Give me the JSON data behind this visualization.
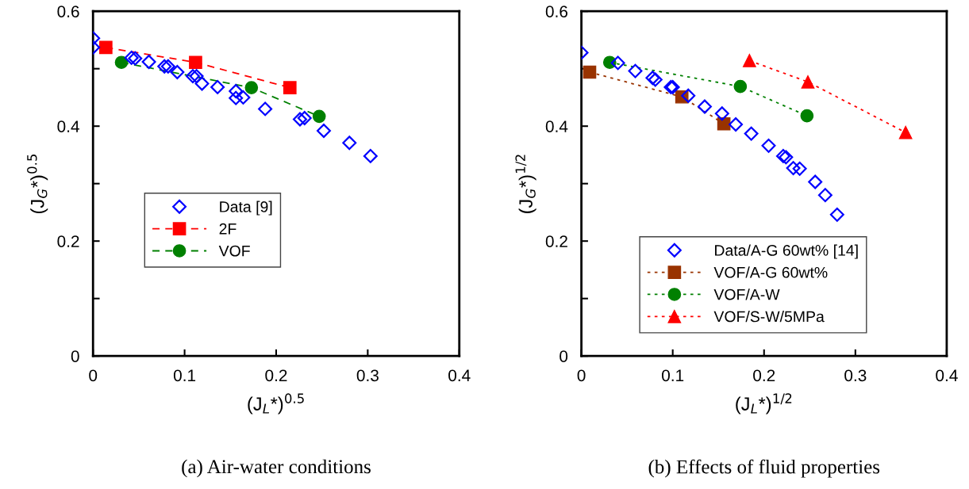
{
  "chart_data": [
    {
      "type": "scatter",
      "xlabel": "(J$_{L}$*)$^{0.5}$",
      "ylabel": "(J$_{G}$*)$^{0.5}$",
      "annotations": [
        "(a) Air-water conditions"
      ],
      "xlim": [
        0,
        0.4
      ],
      "ylim": [
        0,
        0.6
      ],
      "xticks": [
        0,
        0.1,
        0.2,
        0.3,
        0.4
      ],
      "yticks": [
        0,
        {
          "value": 0.1,
          "label": null
        },
        0.2,
        {
          "value": 0.3,
          "label": null
        },
        0.4,
        {
          "value": 0.5,
          "label": null
        },
        0.6
      ],
      "grid": false,
      "legend": "center left",
      "series": [
        {
          "name": "Data [9]",
          "marker": "diamond",
          "color": "#0000ff",
          "x": [
            0,
            0,
            0.042,
            0.046,
            0.061,
            0.078,
            0.082,
            0.092,
            0.109,
            0.113,
            0.119,
            0.136,
            0.156,
            0.156,
            0.164,
            0.188,
            0.226,
            0.231,
            0.252,
            0.28,
            0.303
          ],
          "values": [
            0.553,
            0.537,
            0.519,
            0.518,
            0.512,
            0.504,
            0.504,
            0.494,
            0.487,
            0.487,
            0.474,
            0.468,
            0.461,
            0.449,
            0.45,
            0.43,
            0.412,
            0.414,
            0.392,
            0.371,
            0.348
          ]
        },
        {
          "name": "2F",
          "type": "line",
          "marker": "square",
          "line_style": "dashed",
          "color": "#ff0000",
          "x": [
            0.014,
            0.112,
            0.215
          ],
          "values": [
            0.537,
            0.511,
            0.467
          ]
        },
        {
          "name": "VOF",
          "type": "line",
          "marker": "circle",
          "line_style": "dashed",
          "color": "#008000",
          "x": [
            0.031,
            0.173,
            0.247
          ],
          "values": [
            0.511,
            0.467,
            0.417
          ]
        }
      ]
    },
    {
      "type": "scatter",
      "xlabel": "(J$_{L}$*)$^{1/2}$",
      "ylabel": "(J$_{G}$*)$^{1/2}$",
      "annotations": [
        "(b) Effects of fluid properties"
      ],
      "xlim": [
        0,
        0.4
      ],
      "ylim": [
        0,
        0.6
      ],
      "xticks": [
        0,
        0.1,
        0.2,
        0.3,
        0.4
      ],
      "yticks": [
        0,
        {
          "value": 0.1,
          "label": null
        },
        0.2,
        {
          "value": 0.3,
          "label": null
        },
        0.4,
        {
          "value": 0.5,
          "label": null
        },
        0.6
      ],
      "grid": false,
      "legend": "bottom",
      "series": [
        {
          "name": "Data/A-G 60wt% [14]",
          "marker": "diamond",
          "color": "#0000ff",
          "x": [
            0,
            0.04,
            0.059,
            0.078,
            0.081,
            0.098,
            0.1,
            0.117,
            0.135,
            0.154,
            0.169,
            0.186,
            0.205,
            0.221,
            0.224,
            0.232,
            0.239,
            0.256,
            0.267,
            0.28
          ],
          "values": [
            0.528,
            0.51,
            0.496,
            0.484,
            0.481,
            0.468,
            0.468,
            0.453,
            0.434,
            0.422,
            0.403,
            0.387,
            0.366,
            0.348,
            0.346,
            0.327,
            0.326,
            0.303,
            0.28,
            0.246
          ]
        },
        {
          "name": "VOF/A-G 60wt%",
          "type": "line",
          "marker": "square",
          "line_style": "dotted",
          "color": "#993300",
          "x": [
            0.009,
            0.11,
            0.156
          ],
          "values": [
            0.494,
            0.451,
            0.404
          ]
        },
        {
          "name": "VOF/A-W",
          "type": "line",
          "marker": "circle",
          "line_style": "dotted",
          "color": "#008000",
          "x": [
            0.031,
            0.174,
            0.247
          ],
          "values": [
            0.511,
            0.469,
            0.418
          ]
        },
        {
          "name": "VOF/S-W/5MPa",
          "type": "line",
          "marker": "triangle",
          "line_style": "dotted",
          "color": "#ff0000",
          "x": [
            0.184,
            0.248,
            0.355
          ],
          "values": [
            0.514,
            0.477,
            0.389
          ]
        }
      ]
    }
  ]
}
